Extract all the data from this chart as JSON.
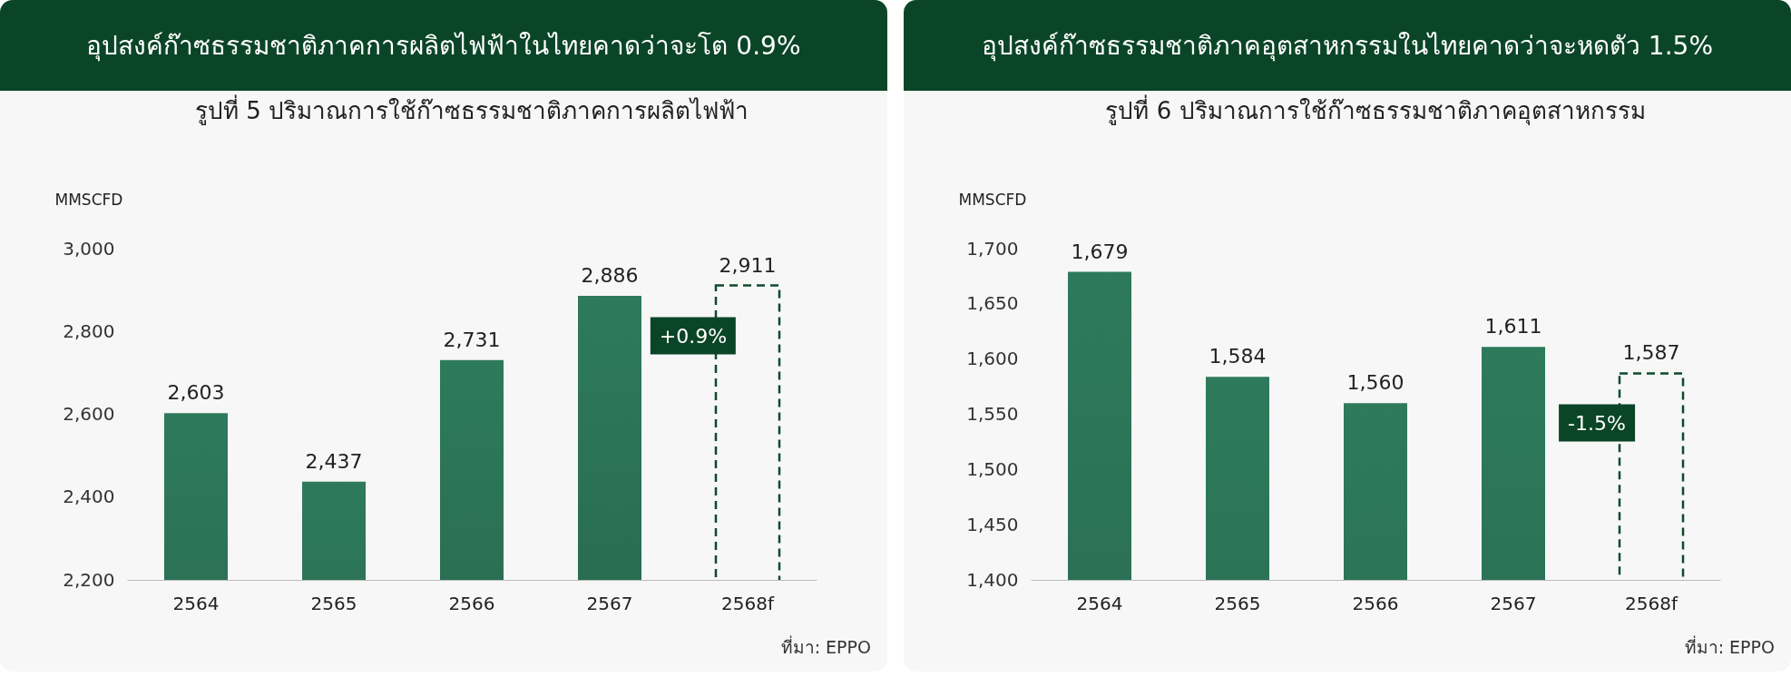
{
  "chart_data": [
    {
      "type": "bar",
      "title": "อุปสงค์ก๊าซธรรมชาติภาคการผลิตไฟฟ้าในไทยคาดว่าจะโต 0.9%",
      "subtitle": "รูปที่ 5 ปริมาณการใช้ก๊าซธรรมชาติภาคการผลิตไฟฟ้า",
      "ylabel": "MMSCFD",
      "categories": [
        "2564",
        "2565",
        "2566",
        "2567",
        "2568f"
      ],
      "series": [
        {
          "color": "#2e7a5c",
          "values": [
            2603,
            2437,
            2731,
            2886,
            null
          ],
          "value_labels": [
            "2,603",
            "2,437",
            "2,731",
            "2,886",
            null
          ]
        },
        {
          "color": "#0d4a2b",
          "line_style": "dashed",
          "values": [
            null,
            null,
            null,
            null,
            2911
          ],
          "value_labels": [
            null,
            null,
            null,
            null,
            "2,911"
          ]
        }
      ],
      "ylim": [
        2200,
        3000
      ],
      "yticks": [
        {
          "value": 2200,
          "label": "2,200"
        },
        {
          "value": 2400,
          "label": "2,400"
        },
        {
          "value": 2600,
          "label": "2,600"
        },
        {
          "value": 2800,
          "label": "2,800"
        },
        {
          "value": 3000,
          "label": "3,000"
        }
      ],
      "annotations": [
        "+0.9%",
        "ที่มา: EPPO"
      ]
    },
    {
      "type": "bar",
      "title": "อุปสงค์ก๊าซธรรมชาติภาคอุตสาหกรรมในไทยคาดว่าจะหดตัว 1.5%",
      "subtitle": "รูปที่ 6 ปริมาณการใช้ก๊าซธรรมชาติภาคอุตสาหกรรม",
      "ylabel": "MMSCFD",
      "categories": [
        "2564",
        "2565",
        "2566",
        "2567",
        "2568f"
      ],
      "series": [
        {
          "color": "#2e7a5c",
          "values": [
            1679,
            1584,
            1560,
            1611,
            null
          ],
          "value_labels": [
            "1,679",
            "1,584",
            "1,560",
            "1,611",
            null
          ]
        },
        {
          "color": "#0d4a2b",
          "line_style": "dashed",
          "values": [
            null,
            null,
            null,
            null,
            1587
          ],
          "value_labels": [
            null,
            null,
            null,
            null,
            "1,587"
          ]
        }
      ],
      "ylim": [
        1400,
        1700
      ],
      "yticks": [
        {
          "value": 1400,
          "label": "1,400"
        },
        {
          "value": 1450,
          "label": "1,450"
        },
        {
          "value": 1500,
          "label": "1,500"
        },
        {
          "value": 1550,
          "label": "1,550"
        },
        {
          "value": 1600,
          "label": "1,600"
        },
        {
          "value": 1650,
          "label": "1,650"
        },
        {
          "value": 1700,
          "label": "1,700"
        }
      ],
      "annotations": [
        "-1.5%",
        "ที่มา: EPPO"
      ]
    }
  ]
}
